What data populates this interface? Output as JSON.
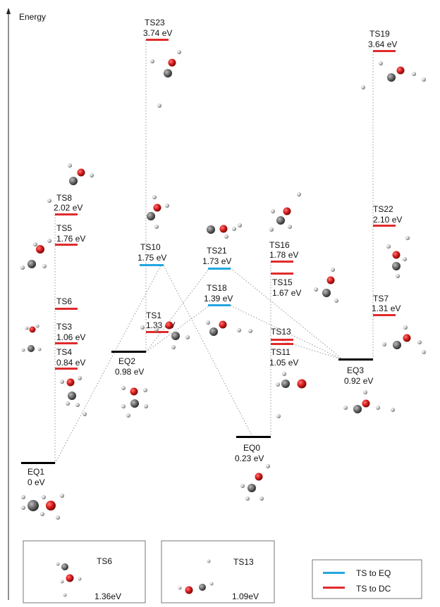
{
  "axis_label": "Energy",
  "colors": {
    "eq": "#000000",
    "ts_eq": "#22a7e0",
    "ts_dc": "#e02b2b",
    "oxygen": "#d81c1c",
    "carbon": "#6e6e6e",
    "hydrogen": "#c4c4c4"
  },
  "states": {
    "EQ1": {
      "name": "EQ1",
      "energy": "0 eV",
      "kind": "eq"
    },
    "EQ2": {
      "name": "EQ2",
      "energy": "0.98 eV",
      "kind": "eq"
    },
    "EQ0": {
      "name": "EQ0",
      "energy": "0.23 eV",
      "kind": "eq"
    },
    "EQ3": {
      "name": "EQ3",
      "energy": "0.92 eV",
      "kind": "eq"
    },
    "TS23": {
      "name": "TS23",
      "energy": "3.74 eV",
      "kind": "ts_dc"
    },
    "TS19": {
      "name": "TS19",
      "energy": "3.64 eV",
      "kind": "ts_dc"
    },
    "TS8": {
      "name": "TS8",
      "energy": "2.02 eV",
      "kind": "ts_dc"
    },
    "TS5": {
      "name": "TS5",
      "energy": "1.76 eV",
      "kind": "ts_dc"
    },
    "TS6": {
      "name": "TS6",
      "energy": "",
      "kind": "ts_dc"
    },
    "TS3": {
      "name": "TS3",
      "energy": "1.06 eV",
      "kind": "ts_dc"
    },
    "TS4": {
      "name": "TS4",
      "energy": "0.84 eV",
      "kind": "ts_dc"
    },
    "TS10": {
      "name": "TS10",
      "energy": "1.75 eV",
      "kind": "ts_eq"
    },
    "TS1": {
      "name": "TS1",
      "energy": "1.33 eV",
      "kind": "ts_dc"
    },
    "TS21": {
      "name": "TS21",
      "energy": "1.73 eV",
      "kind": "ts_eq"
    },
    "TS18": {
      "name": "TS18",
      "energy": "1.39 eV",
      "kind": "ts_eq"
    },
    "TS16": {
      "name": "TS16",
      "energy": "1.78 eV",
      "kind": "ts_dc"
    },
    "TS15": {
      "name": "TS15",
      "energy": "1.67 eV",
      "kind": "ts_dc"
    },
    "TS13": {
      "name": "TS13",
      "energy": "",
      "kind": "ts_dc"
    },
    "TS11": {
      "name": "TS11",
      "energy": "1.05 eV",
      "kind": "ts_dc"
    },
    "TS22": {
      "name": "TS22",
      "energy": "2.10 eV",
      "kind": "ts_dc"
    },
    "TS7": {
      "name": "TS7",
      "energy": "1.31 eV",
      "kind": "ts_dc"
    }
  },
  "inset_boxes": [
    {
      "name": "TS6",
      "energy": "1.36eV"
    },
    {
      "name": "TS13",
      "energy": "1.09eV"
    }
  ],
  "legend": [
    {
      "label": "TS to EQ",
      "color_key": "ts_eq"
    },
    {
      "label": "TS to DC",
      "color_key": "ts_dc"
    }
  ]
}
